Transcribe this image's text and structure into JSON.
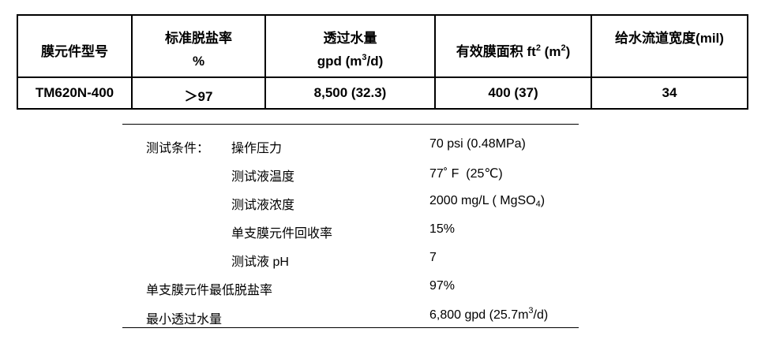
{
  "spec_table": {
    "header": {
      "model": "膜元件型号",
      "rejection": [
        "标准脱盐率",
        "%"
      ],
      "flow": [
        "透过水量",
        "gpd (m",
        "3",
        "/d)"
      ],
      "area": [
        "有效膜面积 ft",
        "2",
        " (m",
        "2",
        ")"
      ],
      "spacer": "给水流道宽度(mil)"
    },
    "row": [
      "TM620N-400",
      "＞97",
      "8,500 (32.3)",
      "400 (37)",
      "34"
    ]
  },
  "conditions": {
    "label": "测试条件：",
    "items": [
      [
        "操作压力",
        "70 psi (0.48MPa)"
      ],
      [
        "测试液温度",
        "77˚ F  (25℃)"
      ],
      [
        "测试液浓度",
        [
          "2000 mg/L ( MgSO",
          "4",
          ")"
        ]
      ],
      [
        "单支膜元件回收率",
        "15%"
      ],
      [
        "测试液 pH",
        "7"
      ]
    ],
    "min_rejection": [
      "单支膜元件最低脱盐率",
      "97%"
    ],
    "min_flow": [
      "最小透过水量",
      [
        "6,800 gpd (25.7m",
        "3",
        "/d)"
      ]
    ]
  }
}
